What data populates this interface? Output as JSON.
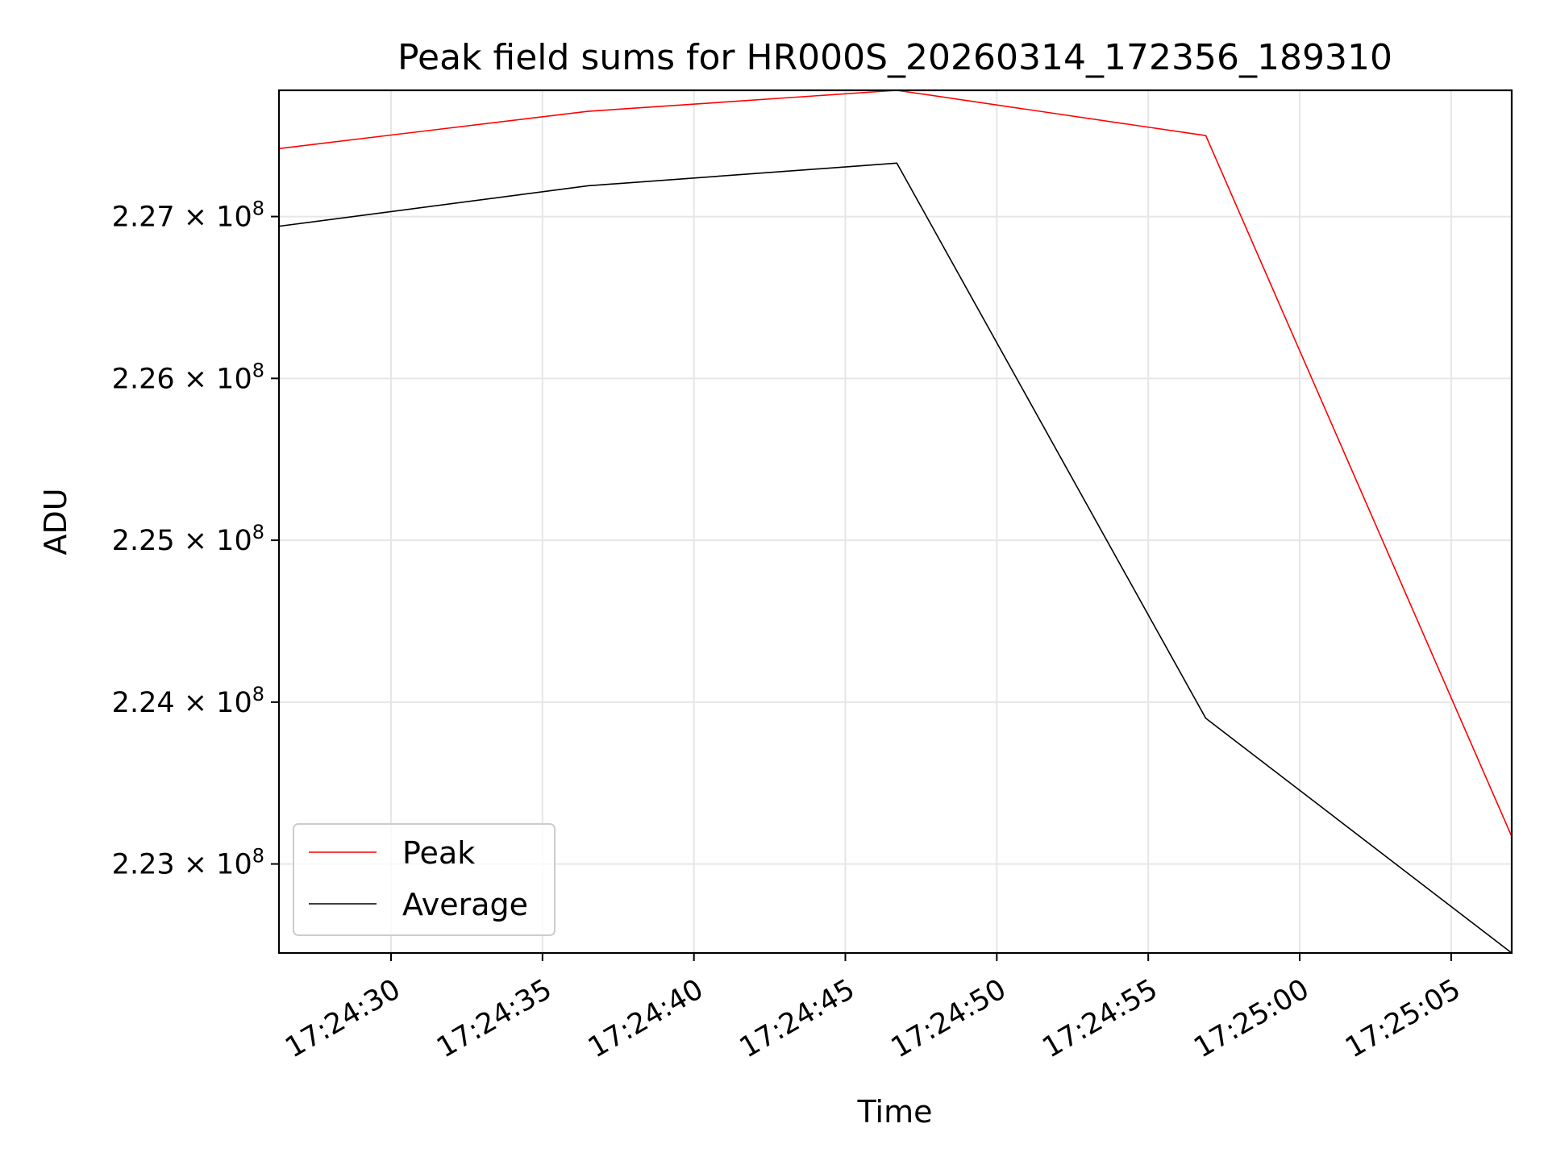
{
  "chart_data": {
    "type": "line",
    "title": "Peak field sums for HR000S_20260314_172356_189310",
    "xlabel": "Time",
    "ylabel": "ADU",
    "x_unit": "seconds after 17:24:00",
    "x": [
      26.3,
      36.5,
      46.7,
      56.9,
      67.0
    ],
    "xlim": [
      26.3,
      67.0
    ],
    "ylim": [
      222.45,
      227.78
    ],
    "y_unit": "x 10^6 ADU",
    "x_ticks": [
      30,
      35,
      40,
      45,
      50,
      55,
      60,
      65
    ],
    "x_tick_labels": [
      "17:24:30",
      "17:24:35",
      "17:24:40",
      "17:24:45",
      "17:24:50",
      "17:24:55",
      "17:25:00",
      "17:25:05"
    ],
    "y_ticks": [
      223.0,
      224.0,
      225.0,
      226.0,
      227.0
    ],
    "y_tick_mantissas": [
      "2.23",
      "2.24",
      "2.25",
      "2.26",
      "2.27"
    ],
    "y_tick_base": "10",
    "y_tick_exponent": "8",
    "y_tick_times": "×",
    "grid": true,
    "legend_position": "lower-left",
    "series": [
      {
        "name": "Peak",
        "color": "#ff0000",
        "values": [
          227.42,
          227.65,
          227.78,
          227.5,
          223.17
        ]
      },
      {
        "name": "Average",
        "color": "#000000",
        "values": [
          226.94,
          227.19,
          227.33,
          223.9,
          222.45
        ]
      }
    ]
  }
}
